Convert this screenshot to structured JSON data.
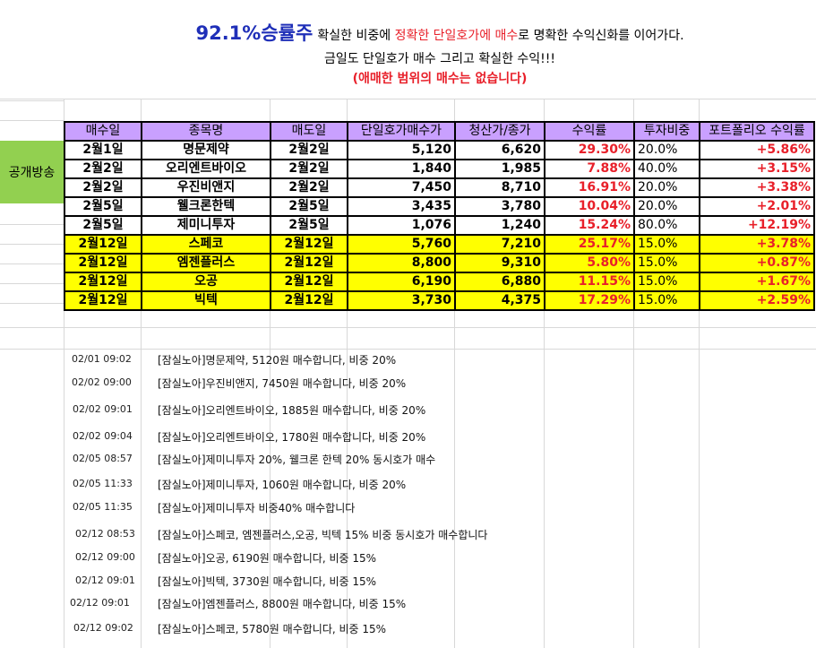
{
  "header": {
    "brand": "92.1%승률주",
    "line1_a": "확실한 비중에 ",
    "line1_red": "정확한 단일호가에 매수",
    "line1_b": "로 명확한 수익신화를 이어가다.",
    "line2": "금일도 단일호가 매수 그리고 확실한 수익!!!",
    "line3": "(애매한 범위의 매수는 없습니다)"
  },
  "side_label": "공개방송",
  "table": {
    "headers": [
      "매수일",
      "종목명",
      "매도일",
      "단일호가매수가",
      "청산가/종가",
      "수익률",
      "투자비중",
      "포트폴리오 수익률"
    ],
    "rows": [
      {
        "buy_date": "2월1일",
        "name": "명문제약",
        "sell_date": "2월2일",
        "buy_price": "5,120",
        "close": "6,620",
        "ret": "29.30%",
        "weight": "20.0%",
        "pf": "+5.86%",
        "highlight": false
      },
      {
        "buy_date": "2월2일",
        "name": "오리엔트바이오",
        "sell_date": "2월2일",
        "buy_price": "1,840",
        "close": "1,985",
        "ret": "7.88%",
        "weight": "40.0%",
        "pf": "+3.15%",
        "highlight": false
      },
      {
        "buy_date": "2월2일",
        "name": "우진비앤지",
        "sell_date": "2월2일",
        "buy_price": "7,450",
        "close": "8,710",
        "ret": "16.91%",
        "weight": "20.0%",
        "pf": "+3.38%",
        "highlight": false
      },
      {
        "buy_date": "2월5일",
        "name": "웰크론한텍",
        "sell_date": "2월5일",
        "buy_price": "3,435",
        "close": "3,780",
        "ret": "10.04%",
        "weight": "20.0%",
        "pf": "+2.01%",
        "highlight": false
      },
      {
        "buy_date": "2월5일",
        "name": "제미니투자",
        "sell_date": "2월5일",
        "buy_price": "1,076",
        "close": "1,240",
        "ret": "15.24%",
        "weight": "80.0%",
        "pf": "+12.19%",
        "highlight": false
      },
      {
        "buy_date": "2월12일",
        "name": "스페코",
        "sell_date": "2월12일",
        "buy_price": "5,760",
        "close": "7,210",
        "ret": "25.17%",
        "weight": "15.0%",
        "pf": "+3.78%",
        "highlight": true
      },
      {
        "buy_date": "2월12일",
        "name": "엠젠플러스",
        "sell_date": "2월12일",
        "buy_price": "8,800",
        "close": "9,310",
        "ret": "5.80%",
        "weight": "15.0%",
        "pf": "+0.87%",
        "highlight": true
      },
      {
        "buy_date": "2월12일",
        "name": "오공",
        "sell_date": "2월12일",
        "buy_price": "6,190",
        "close": "6,880",
        "ret": "11.15%",
        "weight": "15.0%",
        "pf": "+1.67%",
        "highlight": true
      },
      {
        "buy_date": "2월12일",
        "name": "빅텍",
        "sell_date": "2월12일",
        "buy_price": "3,730",
        "close": "4,375",
        "ret": "17.29%",
        "weight": "15.0%",
        "pf": "+2.59%",
        "highlight": true
      }
    ]
  },
  "logs": [
    {
      "time": "02/01 09:02",
      "msg": "[잠실노아]명문제약, 5120원 매수합니다, 비중 20%"
    },
    {
      "time": "02/02 09:00",
      "msg": "[잠실노아]우진비앤지, 7450원 매수합니다, 비중 20%"
    },
    {
      "time": "02/02 09:01",
      "msg": "[잠실노아]오리엔트바이오, 1885원 매수합니다, 비중 20%"
    },
    {
      "time": "02/02 09:04",
      "msg": "[잠실노아]오리엔트바이오, 1780원 매수합니다, 비중 20%"
    },
    {
      "time": "02/05 08:57",
      "msg": "[잠실노아]제미니투자 20%, 웰크론 한텍 20% 동시호가 매수"
    },
    {
      "time": "02/05 11:33",
      "msg": "[잠실노아]제미니투자, 1060원 매수합니다, 비중 20%"
    },
    {
      "time": "02/05 11:35",
      "msg": "[잠실노아]제미니투자 비중40% 매수합니다"
    },
    {
      "time": "02/12 08:53",
      "msg": "[잠실노아]스페코, 엠젠플러스,오공, 빅텍 15% 비중 동시호가 매수합니다"
    },
    {
      "time": "02/12 09:00",
      "msg": "[잠실노아]오공, 6190원 매수합니다, 비중 15%"
    },
    {
      "time": "02/12 09:01",
      "msg": "[잠실노아]빅텍, 3730원 매수합니다, 비중 15%"
    },
    {
      "time": "02/12 09:01",
      "msg": "[잠실노아]엠젠플러스, 8800원 매수합니다, 비중 15%"
    },
    {
      "time": "02/12 09:02",
      "msg": "[잠실노아]스페코, 5780원 매수합니다, 비중 15%"
    }
  ]
}
